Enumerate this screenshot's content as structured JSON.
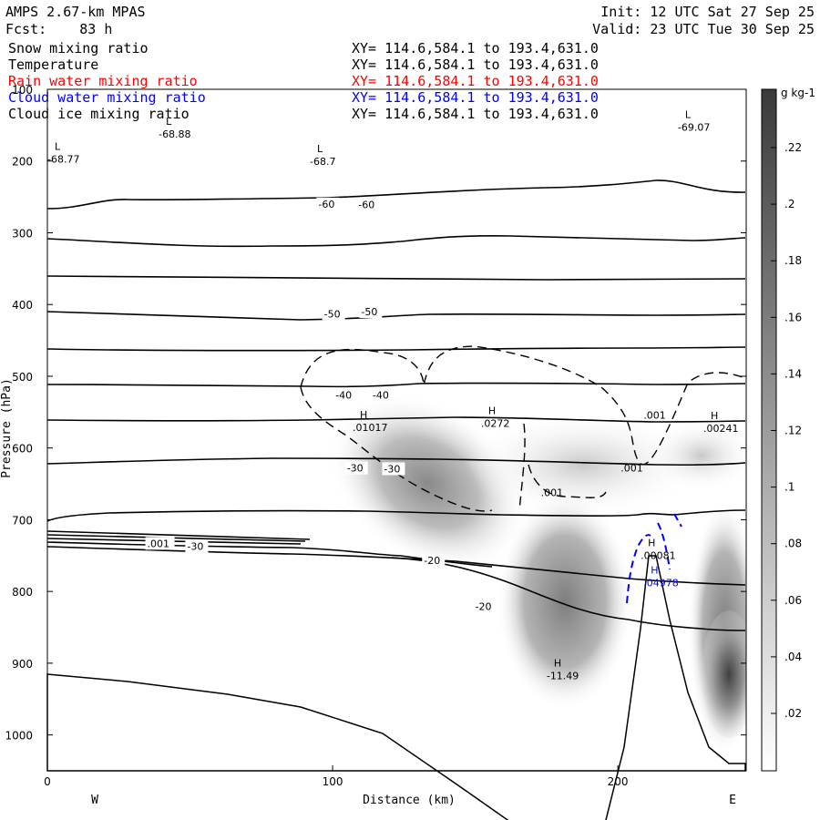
{
  "header": {
    "title": "AMPS 2.67-km MPAS",
    "forecast": "Fcst:    83 h",
    "init": "Init: 12 UTC Sat 27 Sep 25",
    "valid": "Valid: 23 UTC Tue 30 Sep 25"
  },
  "legend": [
    {
      "name": "Snow mixing ratio",
      "xy": "XY= 114.6,584.1 to 193.4,631.0",
      "color": "#000000"
    },
    {
      "name": "Temperature",
      "xy": "XY= 114.6,584.1 to 193.4,631.0",
      "color": "#000000"
    },
    {
      "name": "Rain water mixing ratio",
      "xy": "XY= 114.6,584.1 to 193.4,631.0",
      "color": "#ff0000"
    },
    {
      "name": "Cloud water mixing ratio",
      "xy": "XY= 114.6,584.1 to 193.4,631.0",
      "color": "#0000ff"
    },
    {
      "name": "Cloud ice mixing ratio",
      "xy": "XY= 114.6,584.1 to 193.4,631.0",
      "color": "#000000"
    }
  ],
  "chart_data": {
    "type": "cross-section",
    "xlabel": "Distance (km)",
    "ylabel": "Pressure (hPa)",
    "xlim": [
      0,
      245
    ],
    "ylim": [
      100,
      1050
    ],
    "xticks": [
      0,
      100,
      200
    ],
    "yticks": [
      100,
      200,
      300,
      400,
      500,
      600,
      700,
      800,
      900,
      1000
    ],
    "west_label": "W",
    "east_label": "E",
    "colorbar": {
      "unit": "g kg-1",
      "ticks": [
        ".22",
        ".2",
        ".18",
        ".16",
        ".14",
        ".12",
        ".1",
        ".08",
        ".06",
        ".04",
        ".02"
      ]
    },
    "temperature_labels": [
      {
        "text": "-60",
        "x": 95,
        "p": 265
      },
      {
        "text": "-60",
        "x": 109,
        "p": 266
      },
      {
        "text": "-50",
        "x": 97,
        "p": 418
      },
      {
        "text": "-50",
        "x": 110,
        "p": 415
      },
      {
        "text": "-40",
        "x": 101,
        "p": 531
      },
      {
        "text": "-40",
        "x": 114,
        "p": 531
      },
      {
        "text": "-30",
        "x": 105,
        "p": 633
      },
      {
        "text": "-30",
        "x": 118,
        "p": 634
      },
      {
        "text": "-30",
        "x": 49,
        "p": 742
      },
      {
        "text": ".001",
        "x": 35,
        "p": 738
      },
      {
        "text": "-20",
        "x": 132,
        "p": 762
      },
      {
        "text": "-20",
        "x": 150,
        "p": 826
      }
    ],
    "extrema": [
      {
        "type": "L",
        "value": "-68.88",
        "x": 39,
        "p": 165
      },
      {
        "type": "L",
        "value": "-68.7",
        "x": 92,
        "p": 203
      },
      {
        "type": "L",
        "value": "-69.07",
        "x": 221,
        "p": 155
      },
      {
        "type": "L",
        "value": "-68.77",
        "x": 0,
        "p": 200
      },
      {
        "type": "H",
        "value": ".01017",
        "x": 107,
        "p": 574
      },
      {
        "type": "H",
        "value": ".0272",
        "x": 152,
        "p": 568
      },
      {
        "type": "H",
        "value": ".00241",
        "x": 230,
        "p": 575
      },
      {
        "type": "H",
        "value": ".00081",
        "x": 208,
        "p": 752
      },
      {
        "type": "H",
        "value": ".04978",
        "x": 209,
        "p": 790
      },
      {
        "type": "H",
        "value": "-11.49",
        "x": 175,
        "p": 920
      }
    ],
    "snow_labels": [
      {
        "text": ".001",
        "x": 209,
        "p": 559
      },
      {
        "text": ".001",
        "x": 201,
        "p": 633
      },
      {
        "text": ".001",
        "x": 173,
        "p": 667
      }
    ]
  }
}
